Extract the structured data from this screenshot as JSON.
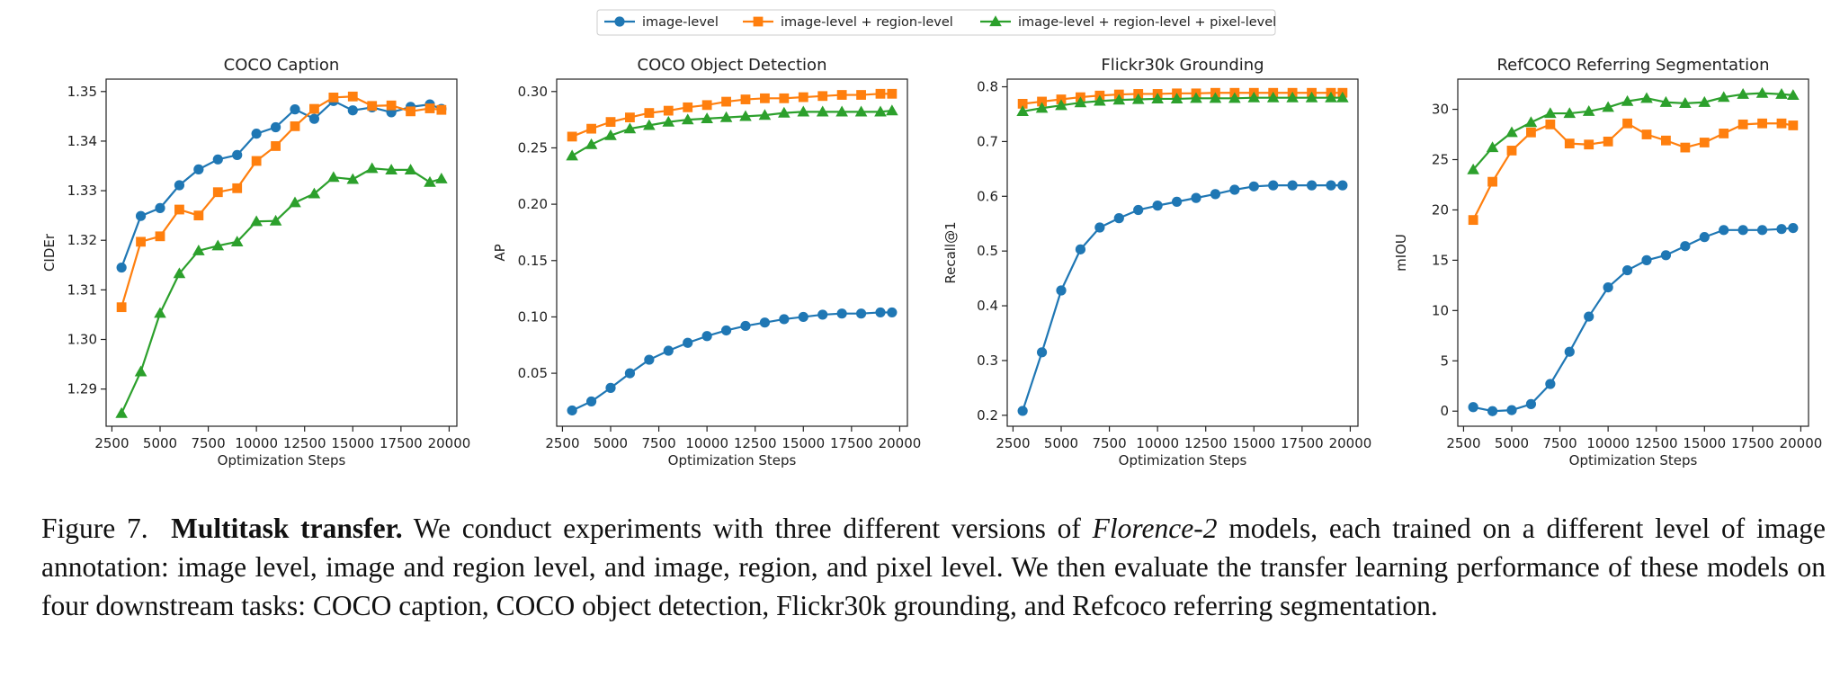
{
  "legend": {
    "items": [
      {
        "label": "image-level",
        "color": "#1f77b4",
        "marker": "circle"
      },
      {
        "label": "image-level + region-level",
        "color": "#ff7f0e",
        "marker": "square"
      },
      {
        "label": "image-level + region-level + pixel-level",
        "color": "#2ca02c",
        "marker": "triangle"
      }
    ]
  },
  "chart_data": [
    {
      "type": "line",
      "title": "COCO Caption",
      "xlabel": "Optimization Steps",
      "ylabel": "CIDEr",
      "xlim": [
        2200,
        20400
      ],
      "ylim": [
        1.2825,
        1.3525
      ],
      "xticks": [
        2500,
        5000,
        7500,
        10000,
        12500,
        15000,
        17500,
        20000
      ],
      "yticks": [
        1.29,
        1.3,
        1.31,
        1.32,
        1.33,
        1.34,
        1.35
      ],
      "ytick_labels": [
        "1.29",
        "1.30",
        "1.31",
        "1.32",
        "1.33",
        "1.34",
        "1.35"
      ],
      "x": [
        3000,
        4000,
        5000,
        6000,
        7000,
        8000,
        9000,
        10000,
        11000,
        12000,
        13000,
        14000,
        15000,
        16000,
        17000,
        18000,
        19000,
        19600
      ],
      "series": [
        {
          "name": "image-level",
          "values": [
            1.3145,
            1.3249,
            1.3265,
            1.3311,
            1.3343,
            1.3363,
            1.3372,
            1.3415,
            1.3428,
            1.3464,
            1.3445,
            1.3481,
            1.3462,
            1.3468,
            1.3458,
            1.3469,
            1.3474,
            1.3465
          ]
        },
        {
          "name": "image-level + region-level",
          "values": [
            1.3065,
            1.3197,
            1.3208,
            1.3262,
            1.325,
            1.3297,
            1.3305,
            1.336,
            1.339,
            1.343,
            1.3465,
            1.3488,
            1.349,
            1.3471,
            1.3472,
            1.346,
            1.3466,
            1.3463
          ]
        },
        {
          "name": "image-level + region-level + pixel-level",
          "values": [
            1.2851,
            1.2935,
            1.3053,
            1.3133,
            1.3179,
            1.3189,
            1.3197,
            1.3238,
            1.3239,
            1.3276,
            1.3294,
            1.3327,
            1.3323,
            1.3345,
            1.3342,
            1.3342,
            1.3317,
            1.3324
          ]
        }
      ]
    },
    {
      "type": "line",
      "title": "COCO Object Detection",
      "xlabel": "Optimization Steps",
      "ylabel": "AP",
      "xlim": [
        2200,
        20400
      ],
      "ylim": [
        0.003,
        0.311
      ],
      "xticks": [
        2500,
        5000,
        7500,
        10000,
        12500,
        15000,
        17500,
        20000
      ],
      "yticks": [
        0.05,
        0.1,
        0.15,
        0.2,
        0.25,
        0.3
      ],
      "ytick_labels": [
        "0.05",
        "0.10",
        "0.15",
        "0.20",
        "0.25",
        "0.30"
      ],
      "x": [
        3000,
        4000,
        5000,
        6000,
        7000,
        8000,
        9000,
        10000,
        11000,
        12000,
        13000,
        14000,
        15000,
        16000,
        17000,
        18000,
        19000,
        19600
      ],
      "series": [
        {
          "name": "image-level",
          "values": [
            0.017,
            0.025,
            0.037,
            0.05,
            0.062,
            0.07,
            0.077,
            0.083,
            0.088,
            0.092,
            0.095,
            0.098,
            0.1,
            0.102,
            0.103,
            0.103,
            0.104,
            0.104
          ]
        },
        {
          "name": "image-level + region-level",
          "values": [
            0.26,
            0.267,
            0.273,
            0.277,
            0.281,
            0.283,
            0.286,
            0.288,
            0.291,
            0.293,
            0.294,
            0.294,
            0.295,
            0.296,
            0.297,
            0.297,
            0.298,
            0.298
          ]
        },
        {
          "name": "image-level + region-level + pixel-level",
          "values": [
            0.243,
            0.253,
            0.261,
            0.267,
            0.27,
            0.273,
            0.275,
            0.276,
            0.277,
            0.278,
            0.279,
            0.281,
            0.282,
            0.282,
            0.282,
            0.282,
            0.282,
            0.283
          ]
        }
      ]
    },
    {
      "type": "line",
      "title": "Flickr30k Grounding",
      "xlabel": "Optimization Steps",
      "ylabel": "Recall@1",
      "xlim": [
        2200,
        20400
      ],
      "ylim": [
        0.18,
        0.814
      ],
      "xticks": [
        2500,
        5000,
        7500,
        10000,
        12500,
        15000,
        17500,
        20000
      ],
      "yticks": [
        0.2,
        0.3,
        0.4,
        0.5,
        0.6,
        0.7,
        0.8
      ],
      "ytick_labels": [
        "0.2",
        "0.3",
        "0.4",
        "0.5",
        "0.6",
        "0.7",
        "0.8"
      ],
      "x": [
        3000,
        4000,
        5000,
        6000,
        7000,
        8000,
        9000,
        10000,
        11000,
        12000,
        13000,
        14000,
        15000,
        16000,
        17000,
        18000,
        19000,
        19600
      ],
      "series": [
        {
          "name": "image-level",
          "values": [
            0.208,
            0.315,
            0.428,
            0.503,
            0.543,
            0.56,
            0.575,
            0.583,
            0.59,
            0.597,
            0.604,
            0.612,
            0.618,
            0.62,
            0.62,
            0.62,
            0.62,
            0.62
          ]
        },
        {
          "name": "image-level + region-level",
          "values": [
            0.769,
            0.773,
            0.777,
            0.781,
            0.784,
            0.786,
            0.787,
            0.787,
            0.788,
            0.788,
            0.789,
            0.789,
            0.789,
            0.789,
            0.789,
            0.789,
            0.789,
            0.789
          ]
        },
        {
          "name": "image-level + region-level + pixel-level",
          "values": [
            0.755,
            0.761,
            0.766,
            0.771,
            0.774,
            0.776,
            0.777,
            0.778,
            0.778,
            0.779,
            0.779,
            0.779,
            0.78,
            0.78,
            0.78,
            0.78,
            0.78,
            0.78
          ]
        }
      ]
    },
    {
      "type": "line",
      "title": "RefCOCO Referring Segmentation",
      "xlabel": "Optimization Steps",
      "ylabel": "mIOU",
      "xlim": [
        2200,
        20400
      ],
      "ylim": [
        -1.5,
        33.0
      ],
      "xticks": [
        2500,
        5000,
        7500,
        10000,
        12500,
        15000,
        17500,
        20000
      ],
      "yticks": [
        0,
        5,
        10,
        15,
        20,
        25,
        30
      ],
      "ytick_labels": [
        "0",
        "5",
        "10",
        "15",
        "20",
        "25",
        "30"
      ],
      "x": [
        3000,
        4000,
        5000,
        6000,
        7000,
        8000,
        9000,
        10000,
        11000,
        12000,
        13000,
        14000,
        15000,
        16000,
        17000,
        18000,
        19000,
        19600
      ],
      "series": [
        {
          "name": "image-level",
          "values": [
            0.4,
            0.0,
            0.1,
            0.7,
            2.7,
            5.9,
            9.4,
            12.3,
            14.0,
            15.0,
            15.5,
            16.4,
            17.3,
            18.0,
            18.0,
            18.0,
            18.1,
            18.2
          ]
        },
        {
          "name": "image-level + region-level",
          "values": [
            19.0,
            22.8,
            25.9,
            27.7,
            28.5,
            26.6,
            26.5,
            26.8,
            28.6,
            27.5,
            26.9,
            26.2,
            26.7,
            27.6,
            28.5,
            28.6,
            28.6,
            28.4
          ]
        },
        {
          "name": "image-level + region-level + pixel-level",
          "values": [
            24.0,
            26.2,
            27.7,
            28.7,
            29.6,
            29.6,
            29.8,
            30.2,
            30.8,
            31.1,
            30.7,
            30.6,
            30.7,
            31.2,
            31.5,
            31.6,
            31.5,
            31.4
          ]
        }
      ]
    }
  ],
  "caption": {
    "prefix": "Figure 7.",
    "bold": "Multitask transfer.",
    "text1": " We conduct experiments with three different versions of ",
    "italic": "Florence-2",
    "text2": " models, each trained on a different level of image annotation: image level, image and region level, and image, region, and pixel level. We then evaluate the transfer learning performance of these models on four downstream tasks: COCO caption, COCO object detection, Flickr30k grounding, and Refcoco referring segmentation."
  }
}
